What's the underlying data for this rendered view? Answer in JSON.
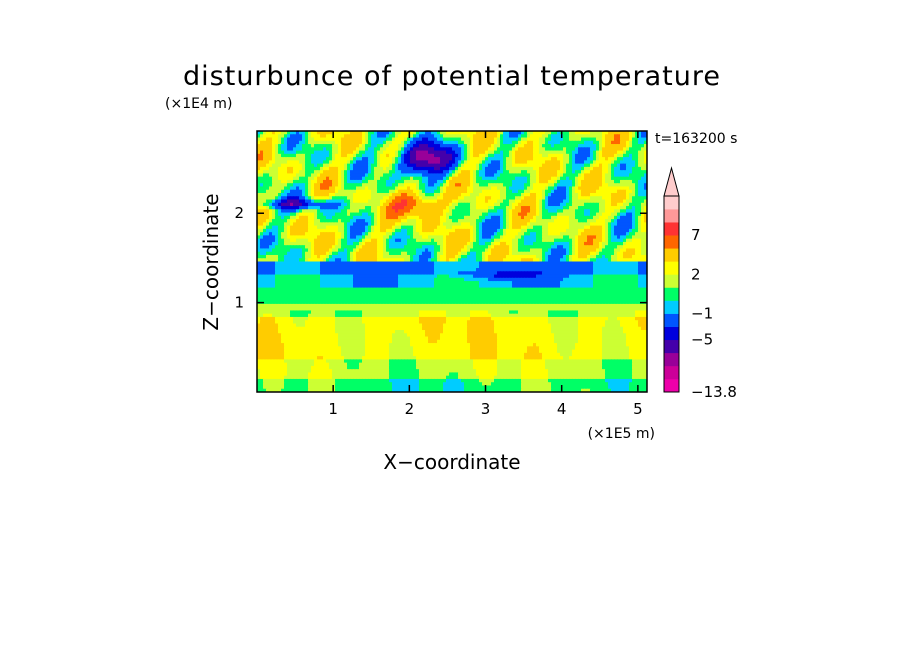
{
  "chart_data": {
    "type": "heatmap",
    "title": "disturbunce of potential temperature",
    "xlabel": "X−coordinate",
    "ylabel": "Z−coordinate",
    "x_unit_label": "(×1E5 m)",
    "y_unit_label": "(×1E4 m)",
    "time_label": "t=163200 s",
    "xlim": [
      0,
      5.12
    ],
    "ylim": [
      0,
      2.92
    ],
    "x_ticks": [
      1,
      2,
      3,
      4,
      5
    ],
    "x_tick_labels": [
      "1",
      "2",
      "3",
      "4",
      "5"
    ],
    "y_ticks": [
      1,
      2
    ],
    "y_tick_labels": [
      "1",
      "2"
    ],
    "colorbar": {
      "levels": [
        -13.8,
        -11,
        -9,
        -7,
        -5,
        -3,
        -1,
        0,
        1,
        2,
        3,
        5,
        7,
        9,
        11
      ],
      "colors": [
        "#ee00aa",
        "#cc0099",
        "#990099",
        "#4400aa",
        "#0000dd",
        "#0055ff",
        "#00ccff",
        "#00ff66",
        "#ccff33",
        "#ffff00",
        "#ffcc00",
        "#ff6600",
        "#ff3333",
        "#ff9999",
        "#ffcccc"
      ],
      "labeled_values": [
        "7",
        "2",
        "−1",
        "−5",
        "−13.8"
      ],
      "extend_top": true
    },
    "field_description_bands": [
      {
        "z_range": [
          0.0,
          0.15
        ],
        "approx_value": 0.5
      },
      {
        "z_range": [
          0.15,
          0.35
        ],
        "approx_value": 1.5
      },
      {
        "z_range": [
          0.35,
          0.85
        ],
        "approx_value": 2.5
      },
      {
        "z_range": [
          0.85,
          1.0
        ],
        "approx_value": 1.5
      },
      {
        "z_range": [
          1.0,
          1.15
        ],
        "approx_value": 0.5
      },
      {
        "z_range": [
          1.15,
          1.3
        ],
        "approx_value": -0.5
      },
      {
        "z_range": [
          1.3,
          1.45
        ],
        "approx_value": -1.5
      },
      {
        "z_range": [
          1.45,
          2.92
        ],
        "approx_value": 1.5
      }
    ]
  }
}
